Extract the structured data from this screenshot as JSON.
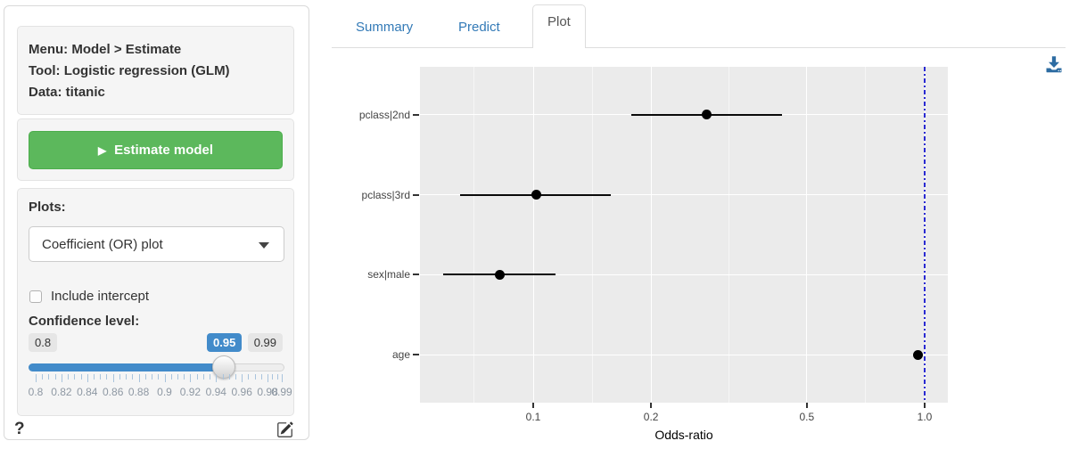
{
  "sidebar": {
    "info": {
      "menu": "Menu: Model > Estimate",
      "tool": "Tool: Logistic regression (GLM)",
      "data": "Data: titanic"
    },
    "estimate_button": {
      "label": "Estimate model"
    },
    "plots": {
      "label": "Plots:",
      "selected": "Coefficient (OR) plot"
    },
    "include_intercept": {
      "label": "Include intercept",
      "checked": false
    },
    "confidence": {
      "label": "Confidence level:",
      "min_label": "0.8",
      "value_label": "0.95",
      "max_label": "0.99",
      "min": 0.8,
      "max": 0.99,
      "value": 0.95,
      "tick_labels": [
        "0.8",
        "0.82",
        "0.84",
        "0.86",
        "0.88",
        "0.9",
        "0.92",
        "0.94",
        "0.96",
        "0.98",
        "0.99"
      ]
    },
    "help_icon_label": "?"
  },
  "tabs": [
    {
      "label": "Summary",
      "active": false
    },
    {
      "label": "Predict",
      "active": false
    },
    {
      "label": "Plot",
      "active": true
    }
  ],
  "icons": {
    "play": "▶",
    "caret_down": "caret-down-triangle",
    "help": "?",
    "edit": "pencil-square",
    "download": "download-arrow-tray"
  },
  "colors": {
    "accent_blue": "#428bca",
    "button_green": "#5cb85c",
    "link_blue": "#337ab7",
    "panel_gray": "#ebebeb",
    "reference_line_blue": "#2a2ad2",
    "download_icon_blue": "#2d6ca2"
  },
  "chart_data": {
    "type": "scatter",
    "subtype": "coefficient-odds-ratio-plot",
    "xlabel": "Odds-ratio",
    "x_scale": "log",
    "x_ticks": [
      0.1,
      0.2,
      0.5,
      1.0
    ],
    "x_tick_labels": [
      "0.1",
      "0.2",
      "0.5",
      "1.0"
    ],
    "x_minor_gridlines": [
      0.0707,
      0.1414,
      0.3162,
      0.7071
    ],
    "xlim": [
      0.051,
      1.146
    ],
    "grid": true,
    "reference_line": {
      "x": 1.0,
      "style": "dash-dot",
      "color": "blue"
    },
    "series": [
      {
        "label": "pclass|2nd",
        "or": 0.278,
        "ci_low": 0.178,
        "ci_high": 0.432
      },
      {
        "label": "pclass|3rd",
        "or": 0.102,
        "ci_low": 0.065,
        "ci_high": 0.158
      },
      {
        "label": "sex|male",
        "or": 0.082,
        "ci_low": 0.059,
        "ci_high": 0.114
      },
      {
        "label": "age",
        "or": 0.96,
        "ci_low": 0.95,
        "ci_high": 0.97
      }
    ]
  }
}
